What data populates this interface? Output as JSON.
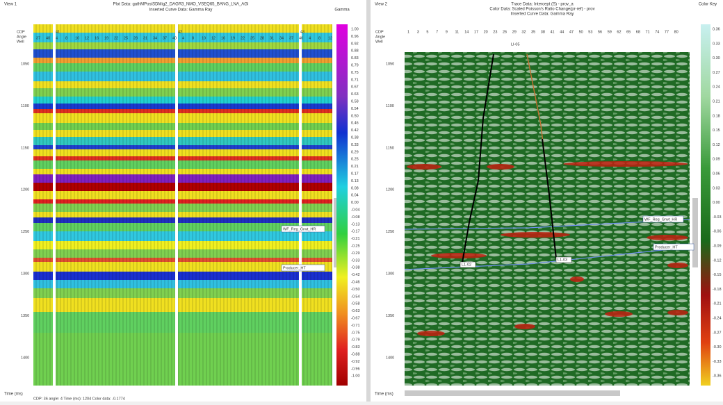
{
  "view1": {
    "tab": "View 1",
    "title": "Plot Data: gathMPostSDMig2_DAGR3_NMO_VSEQ65_BANG_LNA_AGI",
    "subtitle": "Inserted Curve Data: Gamma Ray",
    "colorbar_title": "Gamma",
    "header_labels": [
      "CDP",
      "Angle",
      "Well"
    ],
    "cdp_labels": [
      "41",
      "42",
      "43"
    ],
    "angle_labels": [
      "37",
      "40",
      "4",
      "8",
      "10",
      "12",
      "16",
      "19",
      "22",
      "25",
      "28",
      "31",
      "34",
      "37",
      "40",
      "4",
      "8",
      "10",
      "12",
      "16",
      "19",
      "22",
      "25",
      "28",
      "31",
      "34",
      "37",
      "40",
      "4",
      "8",
      "12"
    ],
    "time_labels": [
      "1050",
      "1100",
      "1150",
      "1200",
      "1250",
      "1300",
      "1350",
      "1400"
    ],
    "colorbar_labels": [
      "1.00",
      "0.96",
      "0.92",
      "0.88",
      "0.83",
      "0.79",
      "0.75",
      "0.71",
      "0.67",
      "0.63",
      "0.58",
      "0.54",
      "0.50",
      "0.46",
      "0.42",
      "0.38",
      "0.33",
      "0.29",
      "0.25",
      "0.21",
      "0.17",
      "0.13",
      "0.08",
      "0.04",
      "0.00",
      "-0.04",
      "-0.08",
      "-0.13",
      "-0.17",
      "-0.21",
      "-0.25",
      "-0.29",
      "-0.33",
      "-0.38",
      "-0.42",
      "-0.46",
      "-0.50",
      "-0.54",
      "-0.58",
      "-0.63",
      "-0.67",
      "-0.71",
      "-0.75",
      "-0.79",
      "-0.83",
      "-0.88",
      "-0.92",
      "-0.96",
      "-1.00"
    ],
    "horizons": [
      "WF_Reg_Grwt_HR",
      "Producer_HT"
    ],
    "axis_label": "Time (ms)",
    "status": "CDP: 36  angle: 4  Time (ms): 1204  Color data: -0.1774"
  },
  "view2": {
    "tab": "View 2",
    "title": "Trace Data: Intercept (S) - prov_a",
    "subtitle": "Color Data: Scaled Poisson's Ratio Change(pr-ref) - prov",
    "subtitle2": "Inserted Curve Data: Gamma Ray",
    "colorbar_title": "Color Key",
    "header_labels": [
      "CDP",
      "Angle",
      "Well"
    ],
    "cdp_labels": [
      "1",
      "3",
      "5",
      "7",
      "9",
      "11",
      "14",
      "17",
      "20",
      "23",
      "26",
      "29",
      "32",
      "35",
      "38",
      "41",
      "44",
      "47",
      "50",
      "53",
      "56",
      "59",
      "62",
      "65",
      "68",
      "71",
      "74",
      "77",
      "80"
    ],
    "well_label": "LI-05",
    "time_labels": [
      "1050",
      "1100",
      "1150",
      "1200",
      "1250",
      "1300",
      "1350",
      "1400"
    ],
    "colorbar_labels": [
      "0.36",
      "0.33",
      "0.30",
      "0.27",
      "0.24",
      "0.21",
      "0.18",
      "0.15",
      "0.12",
      "0.09",
      "0.06",
      "0.03",
      "0.00",
      "-0.03",
      "-0.06",
      "-0.09",
      "-0.12",
      "-0.15",
      "-0.18",
      "-0.21",
      "-0.24",
      "-0.27",
      "-0.30",
      "-0.33",
      "-0.36"
    ],
    "horizons": [
      "WF_Reg_Grwt_HR",
      "Producer_HT"
    ],
    "well_tops": [
      "L1-02",
      "L1-03"
    ],
    "axis_label": "Time (ms)"
  }
}
